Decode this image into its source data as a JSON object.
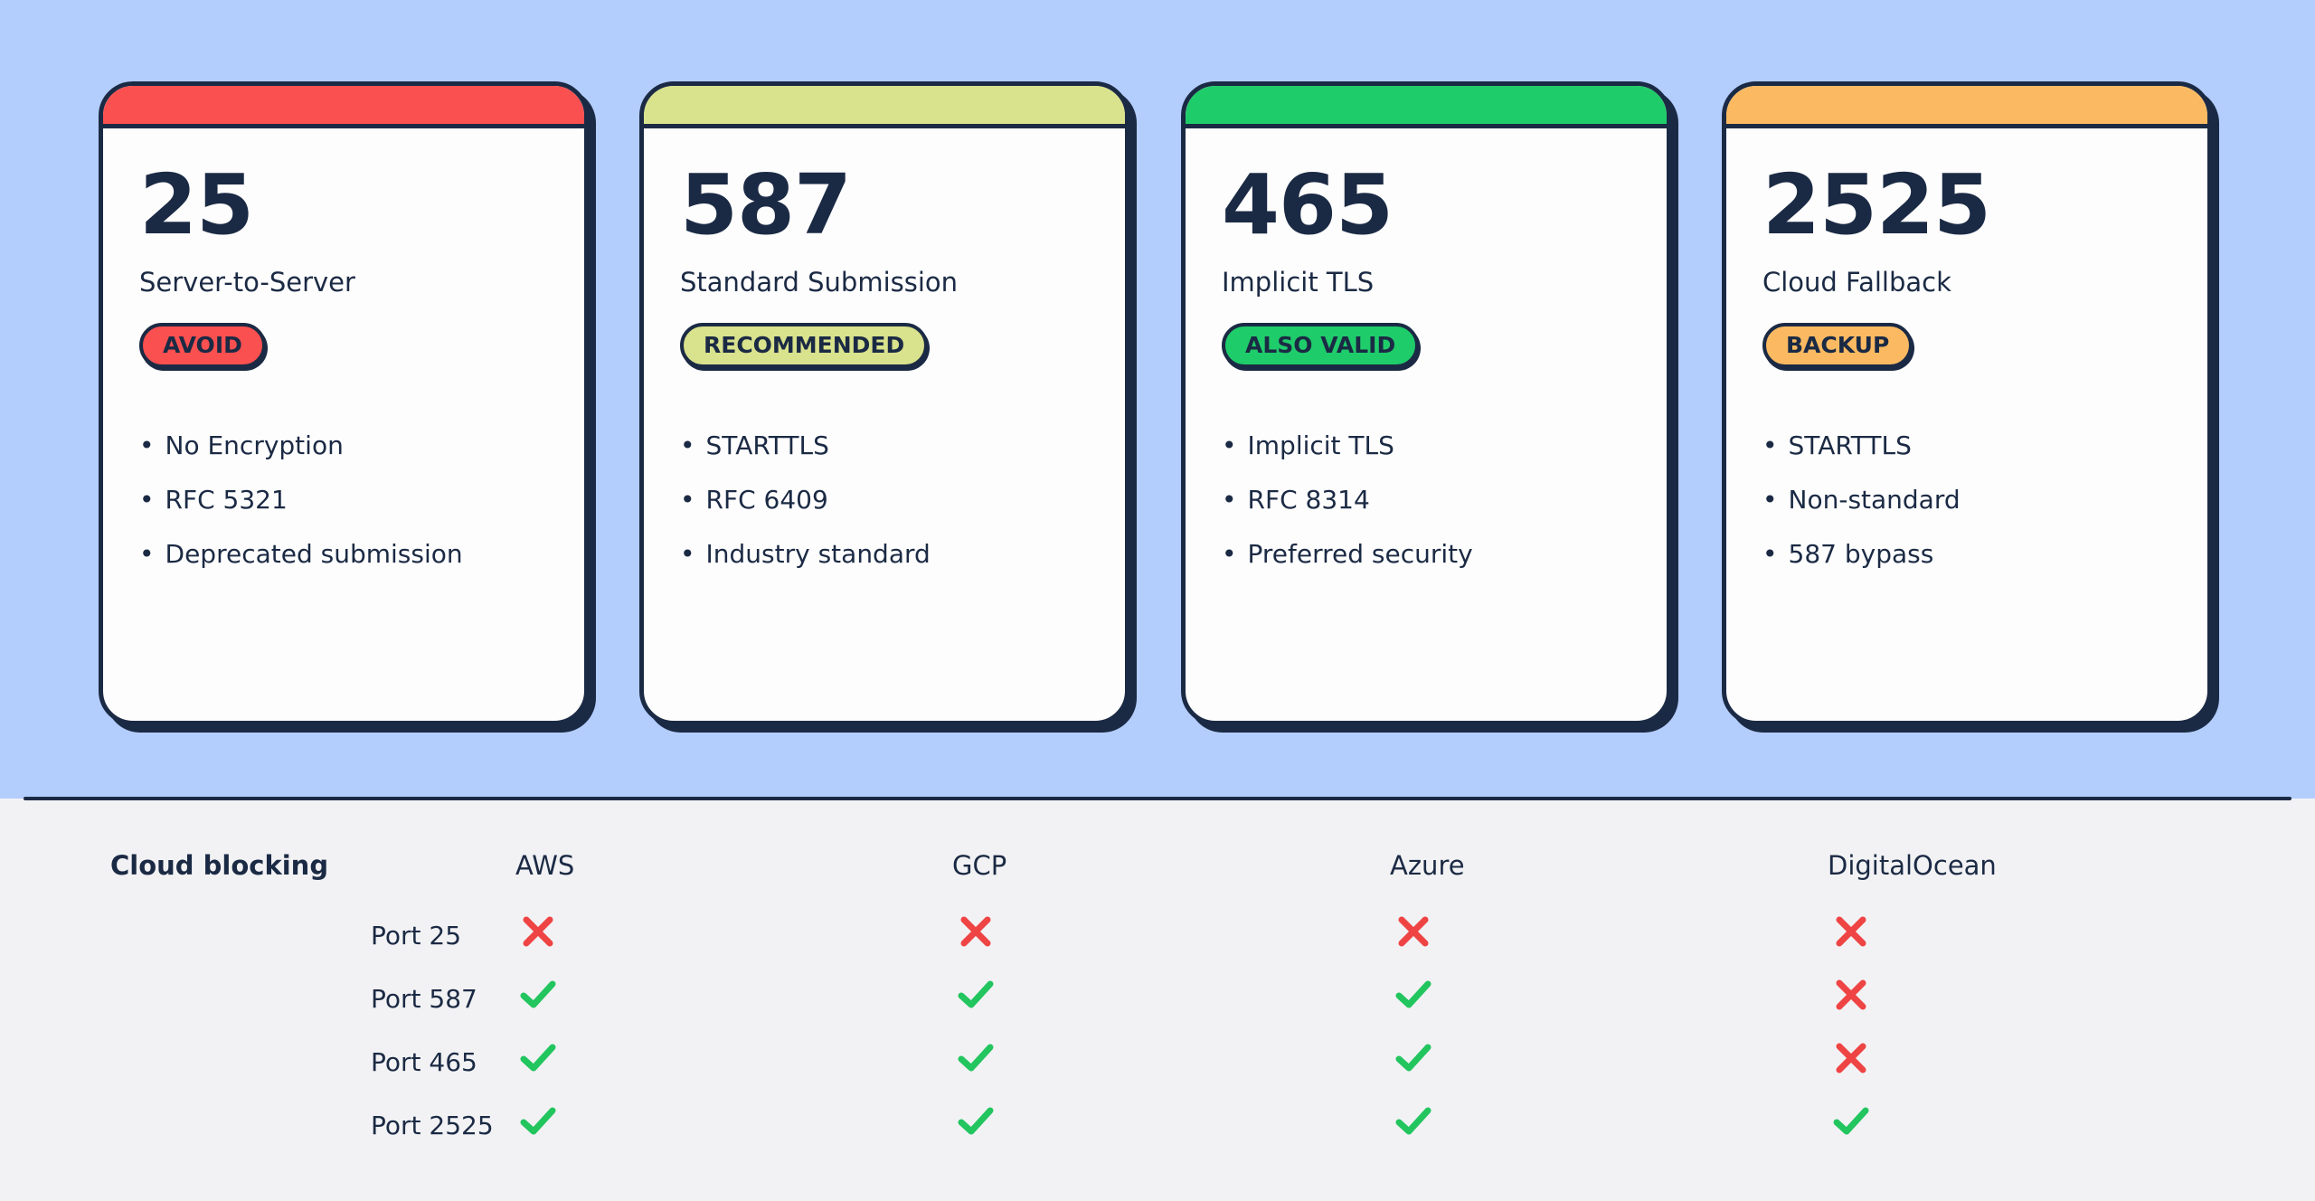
{
  "cards": [
    {
      "port": "25",
      "name": "Server-to-Server",
      "badge": "AVOID",
      "color": "#fa5050",
      "features": [
        "No Encryption",
        "RFC 5321",
        "Deprecated submission"
      ]
    },
    {
      "port": "587",
      "name": "Standard Submission",
      "badge": "RECOMMENDED",
      "color": "#d9e28c",
      "features": [
        "STARTTLS",
        "RFC 6409",
        "Industry standard"
      ]
    },
    {
      "port": "465",
      "name": "Implicit TLS",
      "badge": "ALSO VALID",
      "color": "#1fcc6a",
      "features": [
        "Implicit TLS",
        "RFC 8314",
        "Preferred security"
      ]
    },
    {
      "port": "2525",
      "name": "Cloud Fallback",
      "badge": "BACKUP",
      "color": "#fbba62",
      "features": [
        "STARTTLS",
        "Non-standard",
        "587 bypass"
      ]
    }
  ],
  "table": {
    "title": "Cloud blocking",
    "columns": [
      "AWS",
      "GCP",
      "Azure",
      "DigitalOcean"
    ],
    "rows": [
      {
        "label": "Port 25",
        "cells": [
          "blocked",
          "blocked",
          "blocked",
          "blocked"
        ]
      },
      {
        "label": "Port 587",
        "cells": [
          "open",
          "open",
          "open",
          "blocked"
        ]
      },
      {
        "label": "Port 465",
        "cells": [
          "open",
          "open",
          "open",
          "blocked"
        ]
      },
      {
        "label": "Port 2525",
        "cells": [
          "open",
          "open",
          "open",
          "open"
        ]
      }
    ],
    "icons": {
      "open": "check-icon",
      "blocked": "cross-icon"
    },
    "colors": {
      "open": "#22c55e",
      "blocked": "#ef4444"
    }
  }
}
